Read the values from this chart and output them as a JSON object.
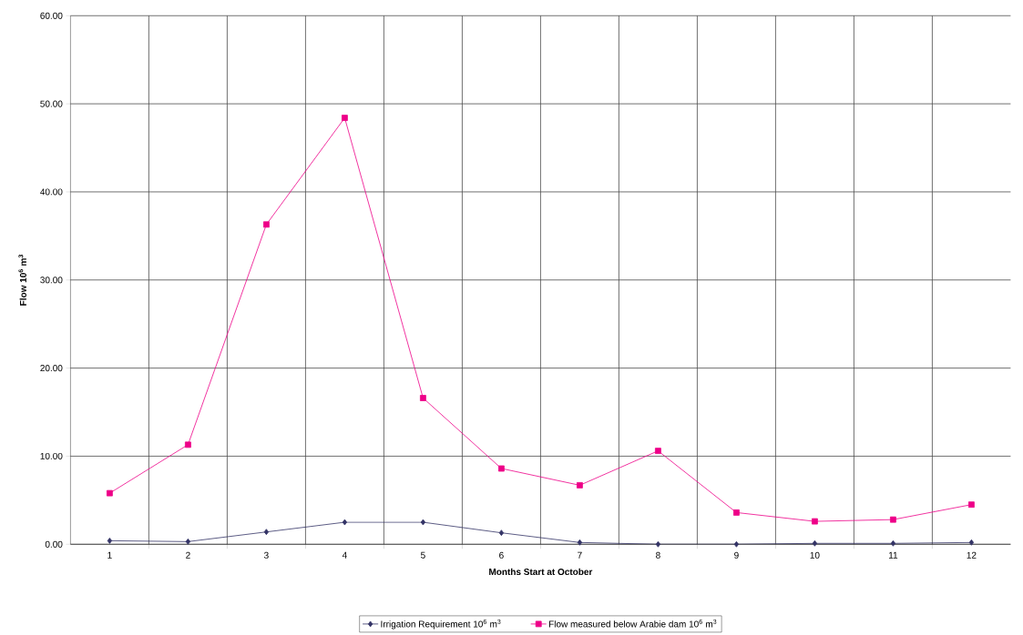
{
  "chart_data": {
    "type": "line",
    "xlabel": "Months Start at October",
    "ylabel": "Flow 10$^{6}$ m$^{3}$",
    "categories": [
      "1",
      "2",
      "3",
      "4",
      "5",
      "6",
      "7",
      "8",
      "9",
      "10",
      "11",
      "12"
    ],
    "series": [
      {
        "name": "Irrigation Requirement 10$^{6}$ m$^{3}$",
        "color": "#333366",
        "marker": "diamond",
        "values": [
          0.4,
          0.3,
          1.4,
          2.5,
          2.5,
          1.3,
          0.2,
          0.0,
          0.0,
          0.1,
          0.1,
          0.2
        ]
      },
      {
        "name": "Flow measured below Arabie dam 10$^{6}$ m$^{3}$",
        "color": "#ee0088",
        "marker": "square",
        "values": [
          5.8,
          11.3,
          36.3,
          48.4,
          16.6,
          8.6,
          6.7,
          10.6,
          3.6,
          2.6,
          2.8,
          4.5
        ]
      }
    ],
    "ylim": [
      0,
      60
    ],
    "yticks": [
      {
        "value": 0,
        "label": "0.00"
      },
      {
        "value": 10,
        "label": "10.00"
      },
      {
        "value": 20,
        "label": "20.00"
      },
      {
        "value": 30,
        "label": "30.00"
      },
      {
        "value": 40,
        "label": "40.00"
      },
      {
        "value": 50,
        "label": "50.00"
      },
      {
        "value": 60,
        "label": "60.00"
      }
    ],
    "grid": true,
    "legend": "bottom",
    "line_style": "solid"
  }
}
